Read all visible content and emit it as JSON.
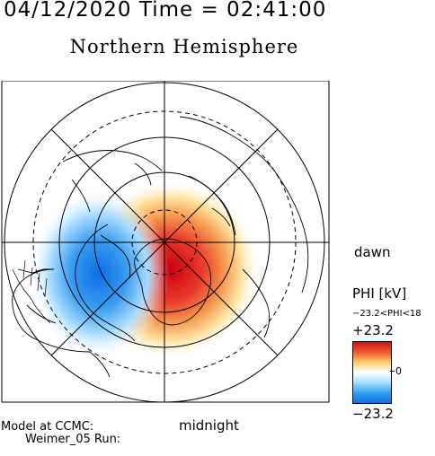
{
  "header": {
    "datetime": "04/12/2020 Time = 02:41:00",
    "hemisphere": "Northern Hemisphere"
  },
  "map": {
    "local_time_labels": {
      "dawn": "dawn",
      "midnight": "midnight"
    },
    "potential_pattern": {
      "positive_cell": "red, dawn/midnight sector",
      "negative_cell": "blue, dusk/midnight sector"
    }
  },
  "colorbar": {
    "title": "PHI [kV]",
    "range_text": "−23.2<PHI<18",
    "max_label": "+23.2",
    "zero_label": "0",
    "min_label": "−23.2",
    "colors": {
      "max": "#d0101a",
      "mid": "#ffffff",
      "min": "#1070e0"
    }
  },
  "footer": {
    "model_line1": "Model at CCMC:",
    "model_line2": "Weimer_05 Run:"
  }
}
